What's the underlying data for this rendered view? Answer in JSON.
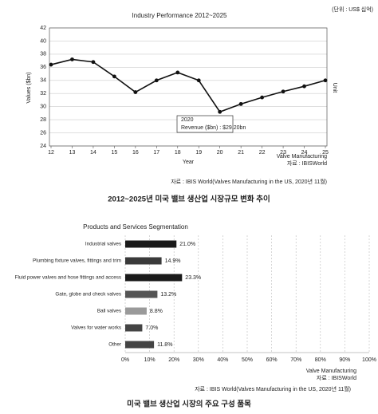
{
  "chart_data": [
    {
      "type": "line",
      "title": "Industry Performance 2012~2025",
      "unit": "(단위 : US$ 십억)",
      "y_label": "Values ($bn)",
      "x_label": "Year",
      "right_label": "Unit",
      "x": [
        12,
        13,
        14,
        15,
        16,
        17,
        18,
        19,
        20,
        21,
        22,
        23,
        24,
        25
      ],
      "values": [
        36.4,
        37.2,
        36.8,
        34.6,
        32.2,
        34.0,
        35.2,
        34.0,
        29.2,
        30.4,
        31.4,
        32.3,
        33.1,
        34.0
      ],
      "color": "#111111",
      "xlim": [
        12,
        25
      ],
      "ylim": [
        24,
        42
      ],
      "xticks": [
        12,
        13,
        14,
        15,
        16,
        17,
        18,
        19,
        20,
        21,
        22,
        23,
        24,
        25
      ],
      "yticks": [
        24,
        26,
        28,
        30,
        32,
        34,
        36,
        38,
        40,
        42
      ],
      "grid": true,
      "annotation": [
        "2020",
        "Revenue ($bn) : $29.20bn"
      ],
      "notes": [
        "Valve Manufacturing",
        "자료 : IBISWorld"
      ],
      "source": "자료 : IBIS World(Valves Manufacturing in the US, 2020년 11월)",
      "caption": "2012~2025년 미국 밸브 생산업 시장규모 변화 추이"
    },
    {
      "type": "hbar",
      "title": "Products and Services Segmentation",
      "categories": [
        "Industrial valves",
        "Plumbing fixture valves, fittings and trim",
        "Fluid power valves and hose fittings and access",
        "Gate, globe and check valves",
        "Ball valves",
        "Valves for water works",
        "Other"
      ],
      "values": [
        21.0,
        14.9,
        23.3,
        13.2,
        8.8,
        7.0,
        11.8
      ],
      "value_labels": [
        "21.0%",
        "14.9%",
        "23.3%",
        "13.2%",
        "8.8%",
        "7.0%",
        "11.8%"
      ],
      "colors": [
        "#1a1a1a",
        "#3a3a3a",
        "#1a1a1a",
        "#555555",
        "#9a9a9a",
        "#444444",
        "#444444"
      ],
      "xlim": [
        0,
        100
      ],
      "xticks": [
        {
          "value": 0,
          "label": "0%"
        },
        {
          "value": 10,
          "label": "10%"
        },
        {
          "value": 20,
          "label": "20%"
        },
        {
          "value": 30,
          "label": "30%"
        },
        {
          "value": 40,
          "label": "40%"
        },
        {
          "value": 50,
          "label": "50%"
        },
        {
          "value": 60,
          "label": "60%"
        },
        {
          "value": 70,
          "label": "70%"
        },
        {
          "value": 80,
          "label": "80%"
        },
        {
          "value": 90,
          "label": "90%"
        },
        {
          "value": 100,
          "label": "100%"
        }
      ],
      "grid": true,
      "notes": [
        "Valve Manufacturing",
        "자료 : IBISWorld"
      ],
      "source": "자료 : IBIS World(Valves Manufacturing in the US, 2020년 11월)",
      "caption": "미국 밸브 생산업 시장의 주요 구성 품목"
    }
  ]
}
